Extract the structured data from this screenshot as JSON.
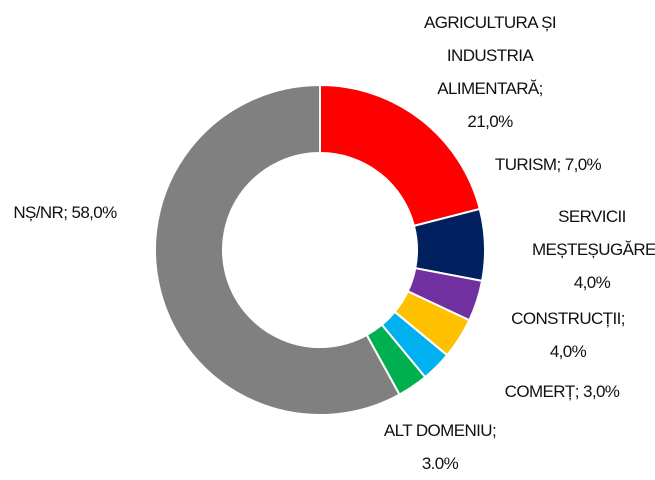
{
  "chart_data": {
    "type": "donut",
    "categories": [
      "AGRICULTURA ȘI INDUSTRIA ALIMENTARĂ",
      "TURISM",
      "SERVICII MEȘTEȘUGĂREȘTI",
      "CONSTRUCȚII",
      "COMERȚ",
      "ALT DOMENIU",
      "NȘ/NR"
    ],
    "values": [
      21.0,
      7.0,
      4.0,
      4.0,
      3.0,
      3.0,
      58.0
    ],
    "value_labels": [
      "21,0%",
      "7,0%",
      "4,0%",
      "4,0%",
      "3,0%",
      "3.0%",
      "58,0%"
    ],
    "colors": [
      "#ff0000",
      "#002060",
      "#7030a0",
      "#ffc000",
      "#00b0f0",
      "#00b050",
      "#808080"
    ]
  }
}
